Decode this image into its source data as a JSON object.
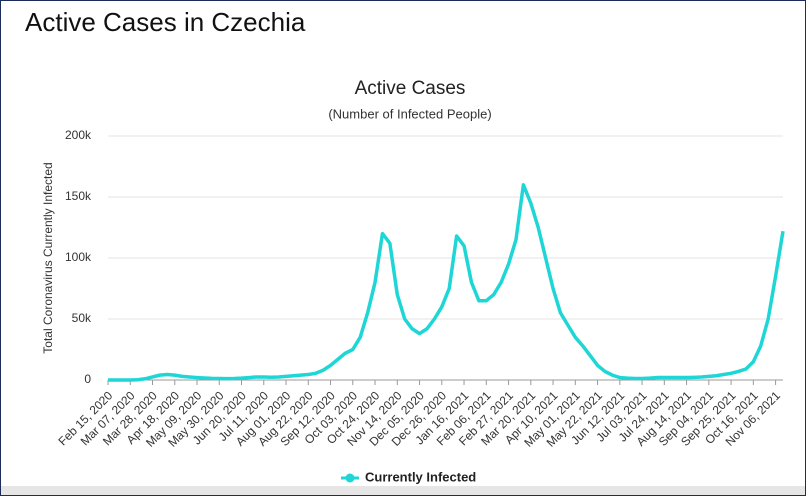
{
  "header": {
    "title": "Active Cases in Czechia"
  },
  "chart_data": {
    "type": "line",
    "title": "Active Cases",
    "subtitle": "(Number of Infected People)",
    "y_label": "Total Coronavirus Currently Infected",
    "categories": [
      "Feb 15, 2020",
      null,
      null,
      "Mar 07, 2020",
      null,
      null,
      "Mar 28, 2020",
      null,
      null,
      "Apr 18, 2020",
      null,
      null,
      "May 09, 2020",
      null,
      null,
      "May 30, 2020",
      null,
      null,
      "Jun 20, 2020",
      null,
      null,
      "Jul 11, 2020",
      null,
      null,
      "Aug 01, 2020",
      null,
      null,
      "Aug 22, 2020",
      null,
      null,
      "Sep 12, 2020",
      null,
      null,
      "Oct 03, 2020",
      null,
      null,
      "Oct 24, 2020",
      null,
      null,
      "Nov 14, 2020",
      null,
      null,
      "Dec 05, 2020",
      null,
      null,
      "Dec 26, 2020",
      null,
      null,
      "Jan 16, 2021",
      null,
      null,
      "Feb 06, 2021",
      null,
      null,
      "Feb 27, 2021",
      null,
      null,
      "Mar 20, 2021",
      null,
      null,
      "Apr 10, 2021",
      null,
      null,
      "May 01, 2021",
      null,
      null,
      "May 22, 2021",
      null,
      null,
      "Jun 12, 2021",
      null,
      null,
      "Jul 03, 2021",
      null,
      null,
      "Jul 24, 2021",
      null,
      null,
      "Aug 14, 2021",
      null,
      null,
      "Sep 04, 2021",
      null,
      null,
      "Sep 25, 2021",
      null,
      null,
      "Oct 16, 2021",
      null,
      null,
      "Nov 06, 2021",
      null
    ],
    "series": [
      {
        "name": "Currently Infected",
        "color": "#1fd6d6",
        "values": [
          0,
          0,
          0,
          0,
          200,
          1000,
          2500,
          4000,
          4500,
          4000,
          3000,
          2500,
          2000,
          1600,
          1300,
          1200,
          1100,
          1200,
          1500,
          2000,
          2500,
          2500,
          2300,
          2500,
          3000,
          3500,
          4000,
          4500,
          5500,
          8000,
          12000,
          17000,
          22000,
          25000,
          35000,
          55000,
          80000,
          120000,
          112000,
          70000,
          50000,
          42000,
          38000,
          42000,
          50000,
          60000,
          75000,
          118000,
          110000,
          80000,
          65000,
          65000,
          70000,
          80000,
          95000,
          115000,
          160000,
          145000,
          125000,
          100000,
          75000,
          55000,
          45000,
          35000,
          28000,
          20000,
          12000,
          7000,
          4000,
          2000,
          1500,
          1200,
          1200,
          1500,
          2000,
          2000,
          2000,
          2000,
          2000,
          2200,
          2500,
          3000,
          3500,
          4500,
          5500,
          7000,
          9000,
          15000,
          28000,
          50000,
          85000,
          122000
        ]
      }
    ],
    "ylim": [
      0,
      200000
    ],
    "yticks": [
      0,
      {
        "value": 50000,
        "label": "50k"
      },
      {
        "value": 100000,
        "label": "100k"
      },
      {
        "value": 150000,
        "label": "150k"
      },
      {
        "value": 200000,
        "label": "200k"
      }
    ],
    "grid": true
  }
}
